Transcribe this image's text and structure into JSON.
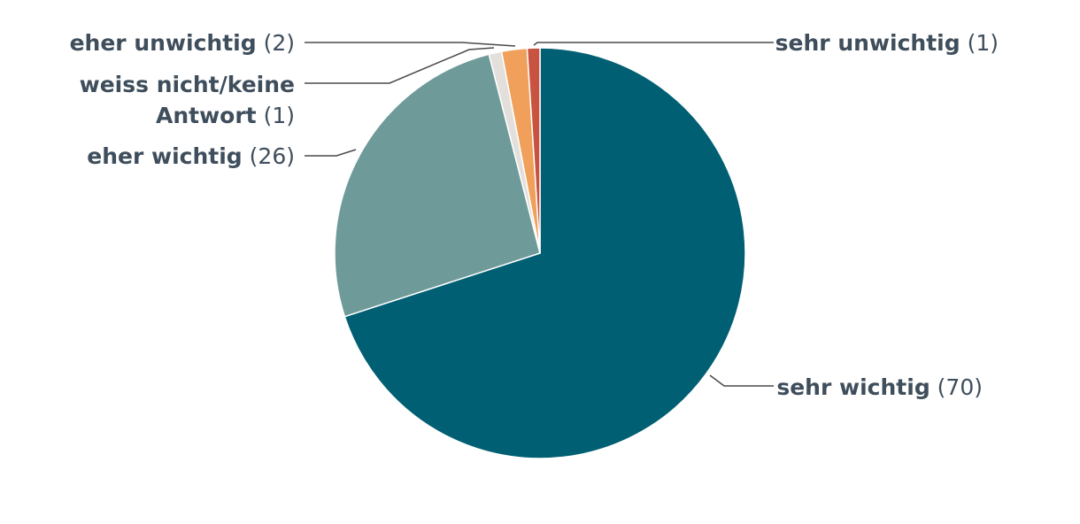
{
  "chart_data": {
    "type": "pie",
    "title": "",
    "slices": [
      {
        "label": "sehr wichtig",
        "value": 70,
        "count_text": "(70)",
        "color": "#005f73"
      },
      {
        "label": "eher wichtig",
        "value": 26,
        "count_text": "(26)",
        "color": "#6e9a99"
      },
      {
        "label": "weiss nicht/keine Antwort",
        "label_lines": [
          "weiss nicht/keine",
          "Antwort"
        ],
        "value": 1,
        "count_text": "(1)",
        "color": "#e3e0dc"
      },
      {
        "label": "eher unwichtig",
        "value": 2,
        "count_text": "(2)",
        "color": "#f0a05a"
      },
      {
        "label": "sehr unwichtig",
        "value": 1,
        "count_text": "(1)",
        "color": "#c85340"
      }
    ],
    "legend": "none"
  }
}
